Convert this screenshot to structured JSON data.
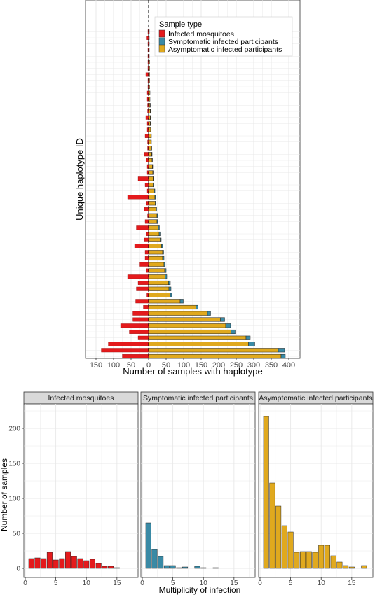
{
  "colors": {
    "mosquito": "#e41a1c",
    "symptomatic": "#3a8aa5",
    "asymptomatic": "#e0a91e",
    "panel_border": "#333333",
    "grid": "#e8e8e8",
    "strip": "#d9d9d9"
  },
  "chart_data": [
    {
      "type": "bar",
      "orientation": "horizontal",
      "stacked": true,
      "xlabel": "Number of samples with haplotype",
      "ylabel": "Unique haplotype ID",
      "xlim": [
        -160,
        410
      ],
      "x_ticks": [
        -150,
        -100,
        -50,
        0,
        50,
        100,
        150,
        200,
        250,
        300,
        350,
        400
      ],
      "x_tick_labels": [
        "150",
        "100",
        "50",
        "0",
        "50",
        "100",
        "150",
        "200",
        "250",
        "300",
        "350",
        "400"
      ],
      "legend": {
        "title": "Sample type",
        "position": "top-right",
        "entries": [
          "Infected mosquitoes",
          "Symptomatic infected participants",
          "Asymptomatic infected participants"
        ]
      },
      "grid": true,
      "reference_line": 0,
      "haplotypes_bottom_to_top": {
        "mosquitoes": [
          75,
          135,
          115,
          30,
          55,
          80,
          45,
          45,
          15,
          37,
          5,
          35,
          30,
          60,
          6,
          25,
          10,
          10,
          40,
          12,
          6,
          35,
          10,
          3,
          12,
          6,
          60,
          4,
          10,
          30,
          4,
          4,
          6,
          12,
          3,
          3,
          10,
          4,
          4,
          8,
          3,
          3,
          4,
          4,
          2,
          2,
          8,
          2,
          2,
          2,
          2,
          2,
          5,
          2
        ],
        "symptomatic": [
          12,
          18,
          18,
          12,
          12,
          14,
          12,
          9,
          6,
          9,
          4,
          6,
          5,
          5,
          4,
          3,
          4,
          3,
          3,
          3,
          3,
          3,
          2,
          2,
          2,
          2,
          2,
          2,
          2,
          1,
          1,
          1,
          1,
          1,
          1,
          1,
          1,
          1,
          1,
          1,
          1,
          1,
          0,
          0,
          0,
          0,
          0,
          0,
          0,
          0,
          0,
          0,
          0,
          0
        ],
        "asymptomatic": [
          378,
          370,
          285,
          278,
          235,
          220,
          205,
          168,
          135,
          90,
          62,
          58,
          57,
          47,
          46,
          44,
          40,
          40,
          37,
          33,
          30,
          28,
          24,
          24,
          21,
          19,
          18,
          16,
          13,
          13,
          12,
          11,
          10,
          9,
          8,
          7,
          7,
          6,
          5,
          5,
          5,
          4,
          4,
          4,
          3,
          3,
          3,
          3,
          3,
          2,
          2,
          2,
          2,
          2
        ]
      }
    },
    {
      "type": "bar",
      "faceted": true,
      "xlabel": "Multiplicity of infection",
      "ylabel": "Number of samples",
      "xlim": [
        0,
        18
      ],
      "ylim": [
        0,
        225
      ],
      "x_ticks": [
        0,
        5,
        10,
        15
      ],
      "y_ticks": [
        0,
        50,
        100,
        150,
        200
      ],
      "grid": true,
      "panels": [
        {
          "name": "Infected mosquitoes",
          "x": [
            1,
            2,
            3,
            4,
            5,
            6,
            7,
            8,
            9,
            10,
            11,
            12,
            13,
            14,
            15
          ],
          "values": [
            14,
            15,
            14,
            23,
            12,
            14,
            24,
            17,
            14,
            11,
            13,
            7,
            3,
            3,
            1
          ]
        },
        {
          "name": "Symptomatic infected participants",
          "x": [
            1,
            2,
            3,
            4,
            5,
            6,
            7,
            9,
            10,
            12
          ],
          "values": [
            65,
            27,
            17,
            4,
            4,
            1,
            2,
            3,
            1,
            1
          ]
        },
        {
          "name": "Asymptomatic infected participants",
          "x": [
            1,
            2,
            3,
            4,
            5,
            6,
            7,
            8,
            9,
            10,
            11,
            12,
            13,
            14,
            15,
            17
          ],
          "values": [
            217,
            122,
            89,
            61,
            52,
            23,
            24,
            24,
            23,
            33,
            33,
            18,
            9,
            4,
            2,
            4
          ]
        }
      ]
    }
  ]
}
